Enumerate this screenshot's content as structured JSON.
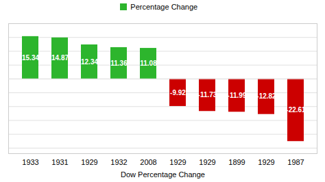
{
  "chart_data": {
    "type": "bar",
    "xlabel": "Dow Percentage Change",
    "categories": [
      "1933",
      "1931",
      "1929",
      "1932",
      "2008",
      "1929",
      "1929",
      "1899",
      "1929",
      "1987"
    ],
    "series": [
      {
        "name": "Percentage Change",
        "color": "#2db52d",
        "values": [
          15.34,
          14.87,
          12.34,
          11.36,
          11.08,
          -9.92,
          -11.73,
          -11.99,
          -12.82,
          -22.61
        ],
        "colors": [
          "#2db52d",
          "#2db52d",
          "#2db52d",
          "#2db52d",
          "#2db52d",
          "#cc0000",
          "#cc0000",
          "#cc0000",
          "#cc0000",
          "#cc0000"
        ]
      }
    ],
    "ylim": [
      -27,
      20
    ],
    "yticks": [
      -25,
      -20,
      -15,
      -10,
      -5,
      0,
      5,
      10,
      15,
      20
    ],
    "grid": true,
    "legend": "top",
    "data_labels": true,
    "tick_labels": "x"
  }
}
